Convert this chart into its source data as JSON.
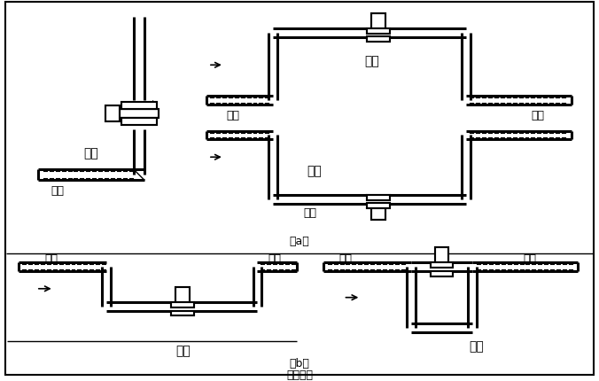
{
  "bg_color": "#ffffff",
  "line_color": "#000000",
  "lw_pipe": 2.2,
  "lw_border": 1.5,
  "lw_thin": 1.0,
  "font_size": 9,
  "labels": {
    "zhengque": "正确",
    "cuowu": "错误",
    "yeti": "液体",
    "qipao": "气泡",
    "a": "（a）",
    "b": "（b）",
    "figure": "图（四）"
  }
}
